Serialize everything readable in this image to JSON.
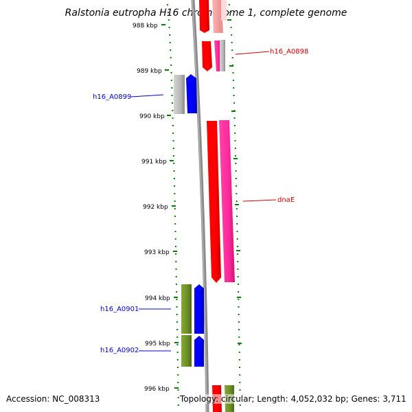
{
  "title": "Ralstonia eutropha H16 chromosome 1, complete genome",
  "footer": {
    "accession": "Accession: NC_008313",
    "summary": "Topology: circular; Length: 4,052,032 bp; Genes: 3,711"
  },
  "scale_ticks": [
    {
      "label": "988 kbp",
      "kbp": 988
    },
    {
      "label": "989 kbp",
      "kbp": 989
    },
    {
      "label": "990 kbp",
      "kbp": 990
    },
    {
      "label": "991 kbp",
      "kbp": 991
    },
    {
      "label": "992 kbp",
      "kbp": 992
    },
    {
      "label": "993 kbp",
      "kbp": 993
    },
    {
      "label": "994 kbp",
      "kbp": 994
    },
    {
      "label": "995 kbp",
      "kbp": 995
    },
    {
      "label": "996 kbp",
      "kbp": 996
    }
  ],
  "gene_labels": [
    {
      "text": "h16_A0898",
      "color": "#cc0000"
    },
    {
      "text": "h16_A0899",
      "color": "#0000cc"
    },
    {
      "text": "dnaE",
      "color": "#cc0000"
    },
    {
      "text": "h16_A0901",
      "color": "#0000cc"
    },
    {
      "text": "h16_A0902",
      "color": "#0000cc"
    }
  ],
  "colors": {
    "forward_cds": "#ff0000",
    "forward_feature": "#ff3399",
    "reverse_cds": "#0000ff",
    "reverse_feature_grey": "#aaaaaa",
    "reverse_feature_green": "#6b8e23",
    "scale": "#008000",
    "backbone": "#888888"
  }
}
